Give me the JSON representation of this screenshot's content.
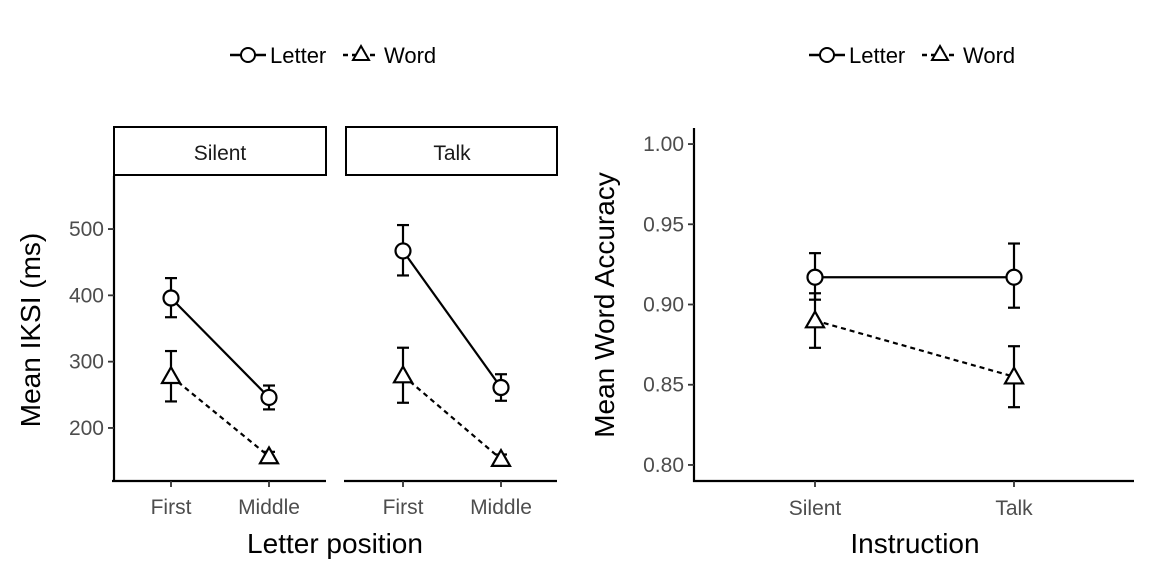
{
  "chart_data": [
    {
      "type": "line",
      "facets": [
        "Silent",
        "Talk"
      ],
      "categories": [
        "First",
        "Middle"
      ],
      "xlabel": "Letter position",
      "ylabel": "Mean IKSI (ms)",
      "ylim": [
        120,
        580
      ],
      "yticks": [
        200,
        300,
        400,
        500
      ],
      "legend": {
        "position": "top",
        "entries": [
          "Letter",
          "Word"
        ]
      },
      "grid": false,
      "series": [
        {
          "name": "Letter",
          "marker": "circle",
          "linestyle": "solid",
          "panels": {
            "Silent": {
              "values": [
                396,
                246
              ],
              "lower": [
                367,
                228
              ],
              "upper": [
                426,
                264
              ]
            },
            "Talk": {
              "values": [
                467,
                261
              ],
              "lower": [
                430,
                241
              ],
              "upper": [
                506,
                281
              ]
            }
          }
        },
        {
          "name": "Word",
          "marker": "triangle",
          "linestyle": "dashed",
          "panels": {
            "Silent": {
              "values": [
                278,
                157
              ],
              "lower": [
                240,
                151
              ],
              "upper": [
                316,
                164
              ]
            },
            "Talk": {
              "values": [
                279,
                153
              ],
              "lower": [
                238,
                147
              ],
              "upper": [
                321,
                160
              ]
            }
          }
        }
      ]
    },
    {
      "type": "line",
      "categories": [
        "Silent",
        "Talk"
      ],
      "xlabel": "Instruction",
      "ylabel": "Mean Word Accuracy",
      "ylim": [
        0.79,
        1.01
      ],
      "yticks": [
        "0.80",
        "0.85",
        "0.90",
        "0.95",
        "1.00"
      ],
      "legend": {
        "position": "top",
        "entries": [
          "Letter",
          "Word"
        ]
      },
      "grid": false,
      "series": [
        {
          "name": "Letter",
          "marker": "circle",
          "linestyle": "solid",
          "values": [
            0.917,
            0.917
          ],
          "lower": [
            0.903,
            0.898
          ],
          "upper": [
            0.932,
            0.938
          ]
        },
        {
          "name": "Word",
          "marker": "triangle",
          "linestyle": "dashed",
          "values": [
            0.89,
            0.855
          ],
          "lower": [
            0.873,
            0.836
          ],
          "upper": [
            0.907,
            0.874
          ]
        }
      ]
    }
  ]
}
